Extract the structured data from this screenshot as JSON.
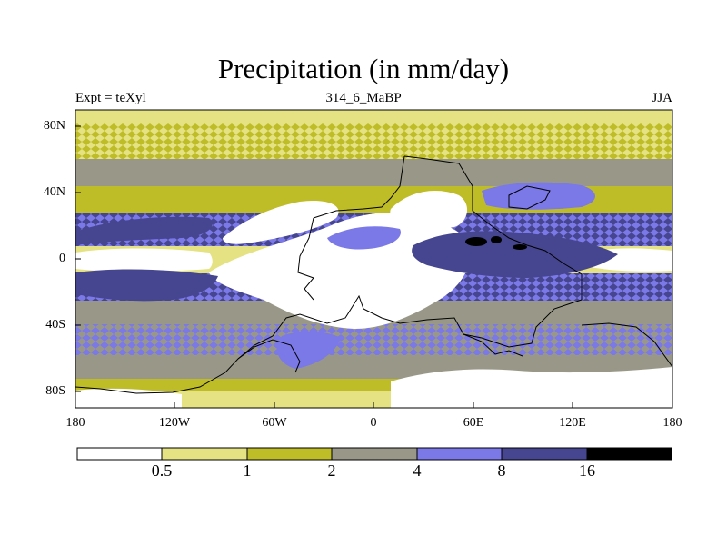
{
  "title": "Precipitation (in mm/day)",
  "subtitle_left": "Expt = teXyl",
  "subtitle_center": "314_6_MaBP",
  "subtitle_right": "JJA",
  "y_axis_labels": [
    "80N",
    "40N",
    "0",
    "40S",
    "80S"
  ],
  "x_axis_labels": [
    "180",
    "120W",
    "60W",
    "0",
    "60E",
    "120E",
    "180"
  ],
  "colorbar": {
    "levels": [
      "0.5",
      "1",
      "2",
      "4",
      "8",
      "16"
    ],
    "colors": [
      "#ffffff",
      "#e4e282",
      "#bfbd27",
      "#999888",
      "#7b78e8",
      "#46458f",
      "#000000"
    ]
  },
  "map": {
    "projection": "cylindrical equidistant",
    "lon_range": [
      -180,
      180
    ],
    "lat_range": [
      -90,
      90
    ],
    "colors": {
      "dry": "#ffffff",
      "light": "#e4e282",
      "moderate": "#bfbd27",
      "gray": "#999888",
      "wet": "#7b78e8",
      "very_wet": "#46458f",
      "extreme": "#000000"
    }
  }
}
